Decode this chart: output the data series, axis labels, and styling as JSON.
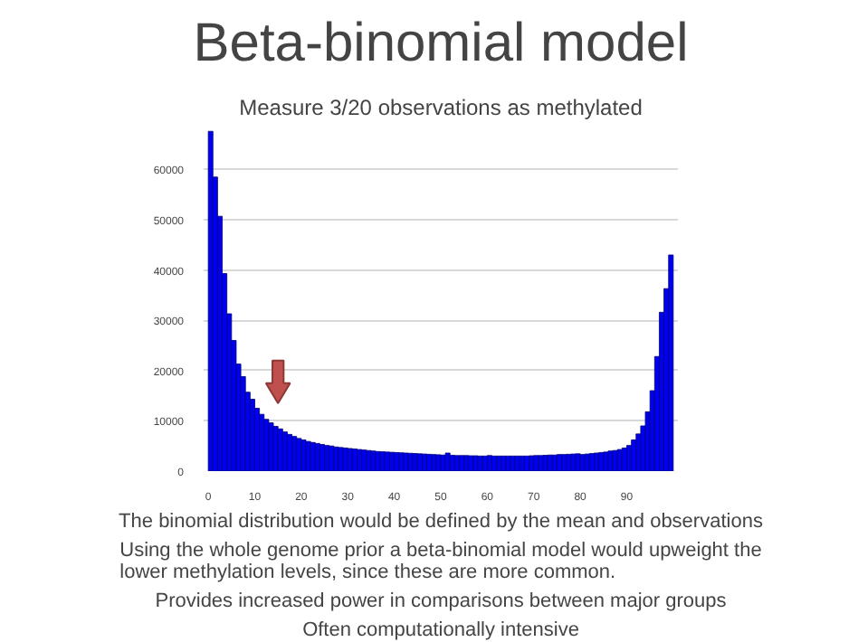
{
  "chart_data": {
    "type": "histogram",
    "title": "Beta-binomial model",
    "subtitle": "Measure 3/20 observations as methylated",
    "bins": [
      0,
      1,
      2,
      3,
      4,
      5,
      6,
      7,
      8,
      9,
      10,
      11,
      12,
      13,
      14,
      15,
      16,
      17,
      18,
      19,
      20,
      21,
      22,
      23,
      24,
      25,
      26,
      27,
      28,
      29,
      30,
      31,
      32,
      33,
      34,
      35,
      36,
      37,
      38,
      39,
      40,
      41,
      42,
      43,
      44,
      45,
      46,
      47,
      48,
      49,
      50,
      51,
      52,
      53,
      54,
      55,
      56,
      57,
      58,
      59,
      60,
      61,
      62,
      63,
      64,
      65,
      66,
      67,
      68,
      69,
      70,
      71,
      72,
      73,
      74,
      75,
      76,
      77,
      78,
      79,
      80,
      81,
      82,
      83,
      84,
      85,
      86,
      87,
      88,
      89,
      90,
      91,
      92,
      93,
      94,
      95,
      96,
      97,
      98,
      99,
      100
    ],
    "values": [
      67600,
      58500,
      50700,
      39300,
      31300,
      26000,
      21300,
      18800,
      15700,
      14300,
      12500,
      11300,
      10300,
      9600,
      8900,
      8400,
      7800,
      7300,
      6900,
      6500,
      6200,
      5900,
      5700,
      5500,
      5300,
      5100,
      5000,
      4800,
      4700,
      4600,
      4500,
      4400,
      4300,
      4200,
      4100,
      4000,
      3900,
      3850,
      3800,
      3750,
      3700,
      3650,
      3600,
      3550,
      3500,
      3450,
      3400,
      3350,
      3300,
      3250,
      3200,
      3600,
      3150,
      3100,
      3100,
      3100,
      3050,
      3050,
      3000,
      3000,
      3100,
      3000,
      3000,
      3000,
      3000,
      3000,
      3000,
      3000,
      3000,
      3050,
      3100,
      3100,
      3150,
      3200,
      3200,
      3300,
      3300,
      3350,
      3400,
      3450,
      3300,
      3400,
      3500,
      3600,
      3700,
      3800,
      4000,
      4100,
      4300,
      4600,
      5100,
      6200,
      7400,
      9000,
      11800,
      16000,
      22800,
      31600,
      36300,
      43000
    ],
    "color": "#0000ee",
    "xlim": [
      -1,
      101
    ],
    "xticks": [
      0,
      10,
      20,
      30,
      40,
      50,
      60,
      70,
      80,
      90
    ],
    "ylim": [
      0,
      68000
    ],
    "yticks": [
      0,
      10000,
      20000,
      30000,
      40000,
      50000,
      60000
    ],
    "grid": "y",
    "annotations": [
      "The binomial distribution would be defined by the mean and observations",
      "Using the whole genome prior a beta-binomial model would upweight the\nlower methylation levels, since these are more common.",
      "Provides increased power in comparisons between major groups",
      "Often computationally intensive"
    ]
  }
}
